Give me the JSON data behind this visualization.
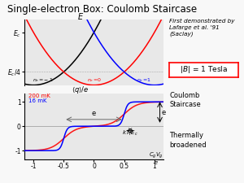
{
  "title": "Single-electron Box: Coulomb Staircase",
  "title_fontsize": 8.5,
  "bg_color": "#e8e8e8",
  "fig_bg": "#f8f8f8",
  "parabola_centers": [
    -1,
    0,
    1
  ],
  "parabola_colors": [
    "black",
    "red",
    "blue"
  ],
  "Ec": 1.0,
  "lower_ylim": [
    -1.35,
    1.35
  ],
  "lower_yticks": [
    -1,
    0,
    1
  ],
  "annotation_right": "First demonstrated by\nLafarge et al. '91\n(Saclay)",
  "annotation_B": "|B| = 1 Tesla",
  "annotation_coulomb": "Coulomb\nStaircase",
  "annotation_thermal": "Thermally\nbroadened",
  "annotation_200mK": "200 mK",
  "annotation_16mK": "16 mK"
}
